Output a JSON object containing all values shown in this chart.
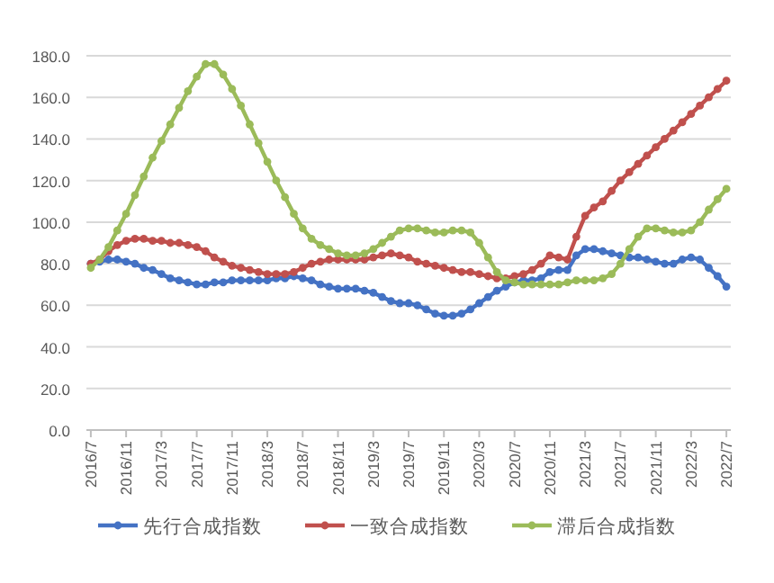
{
  "chart_data": {
    "type": "line",
    "categories": [
      "2016/7",
      null,
      null,
      null,
      "2016/11",
      null,
      null,
      null,
      "2017/3",
      null,
      null,
      null,
      "2017/7",
      null,
      null,
      null,
      "2017/11",
      null,
      null,
      null,
      "2018/3",
      null,
      null,
      null,
      "2018/7",
      null,
      null,
      null,
      "2018/11",
      null,
      null,
      null,
      "2019/3",
      null,
      null,
      null,
      "2019/7",
      null,
      null,
      null,
      "2019/11",
      null,
      null,
      null,
      "2020/3",
      null,
      null,
      null,
      "2020/7",
      null,
      null,
      null,
      "2020/11",
      null,
      null,
      null,
      "2021/3",
      null,
      null,
      null,
      "2021/7",
      null,
      null,
      null,
      "2021/11",
      null,
      null,
      null,
      "2022/3",
      null,
      null,
      null,
      "2022/7"
    ],
    "series": [
      {
        "name": "先行合成指数",
        "color": "#4472c4",
        "values": [
          80,
          81,
          82,
          82,
          81,
          80,
          78,
          77,
          75,
          73,
          72,
          71,
          70,
          70,
          71,
          71,
          72,
          72,
          72,
          72,
          72,
          73,
          73,
          74,
          73,
          72,
          70,
          69,
          68,
          68,
          68,
          67,
          66,
          64,
          62,
          61,
          61,
          60,
          58,
          56,
          55,
          55,
          56,
          58,
          61,
          64,
          67,
          69,
          71,
          72,
          72,
          73,
          76,
          77,
          77,
          84,
          87,
          87,
          86,
          85,
          84,
          83,
          83,
          82,
          81,
          80,
          80,
          82,
          83,
          82,
          78,
          74,
          69
        ]
      },
      {
        "name": "一致合成指数",
        "color": "#c0504d",
        "values": [
          80,
          82,
          86,
          89,
          91,
          92,
          92,
          91,
          91,
          90,
          90,
          89,
          88,
          86,
          83,
          81,
          79,
          78,
          77,
          76,
          75,
          75,
          75,
          76,
          78,
          80,
          81,
          82,
          82,
          82,
          82,
          82,
          83,
          84,
          85,
          84,
          83,
          81,
          80,
          79,
          78,
          77,
          76,
          76,
          75,
          74,
          73,
          73,
          74,
          75,
          77,
          80,
          84,
          83,
          82,
          93,
          103,
          107,
          110,
          115,
          120,
          124,
          128,
          132,
          136,
          140,
          144,
          148,
          152,
          156,
          160,
          164,
          168
        ]
      },
      {
        "name": "滞后合成指数",
        "color": "#9bbb59",
        "values": [
          78,
          82,
          88,
          96,
          104,
          113,
          122,
          131,
          139,
          147,
          155,
          163,
          170,
          176,
          176,
          171,
          164,
          156,
          147,
          138,
          129,
          120,
          112,
          104,
          97,
          92,
          89,
          87,
          85,
          84,
          84,
          85,
          87,
          90,
          93,
          96,
          97,
          97,
          96,
          95,
          95,
          96,
          96,
          95,
          90,
          83,
          76,
          72,
          71,
          70,
          70,
          70,
          70,
          70,
          71,
          72,
          72,
          72,
          73,
          75,
          80,
          87,
          93,
          97,
          97,
          96,
          95,
          95,
          96,
          100,
          106,
          111,
          116
        ]
      }
    ],
    "ylim": [
      0,
      180
    ],
    "yticks": [
      {
        "value": 0,
        "label": "0.0"
      },
      {
        "value": 20,
        "label": "20.0"
      },
      {
        "value": 40,
        "label": "40.0"
      },
      {
        "value": 60,
        "label": "60.0"
      },
      {
        "value": 80,
        "label": "80.0"
      },
      {
        "value": 100,
        "label": "100.0"
      },
      {
        "value": 120,
        "label": "120.0"
      },
      {
        "value": 140,
        "label": "140.0"
      },
      {
        "value": 160,
        "label": "160.0"
      },
      {
        "value": 180,
        "label": "180.0"
      }
    ],
    "grid": "y",
    "legend": "bottom",
    "marker": "circle",
    "line_style": "solid"
  }
}
